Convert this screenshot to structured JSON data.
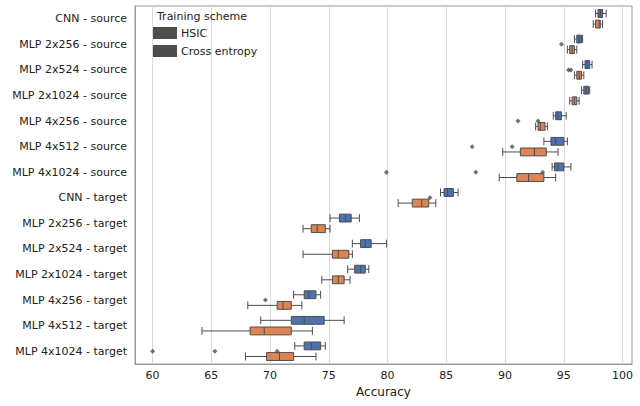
{
  "chart_data": {
    "type": "boxplot",
    "orientation": "horizontal",
    "xlabel": "Accuracy",
    "legend_title": "Training scheme",
    "legend": "upper left",
    "grid": true,
    "xlim": [
      58.5,
      100.8
    ],
    "xticks": [
      60,
      65,
      70,
      75,
      80,
      85,
      90,
      95,
      100
    ],
    "categories": [
      "CNN - source",
      "MLP 2x256 - source",
      "MLP 2x524 - source",
      "MLP 2x1024 - source",
      "MLP 4x256 - source",
      "MLP 4x512 - source",
      "MLP 4x1024 - source",
      "CNN - target",
      "MLP 2x256 - target",
      "MLP 2x524 - target",
      "MLP 2x1024 - target",
      "MLP 4x256 - target",
      "MLP 4x512 - target",
      "MLP 4x1024 - target"
    ],
    "series": [
      {
        "name": "HSIC",
        "color": "#4c72b0",
        "values": [
          [
            97.7,
            97.9,
            98.1,
            98.3,
            98.6
          ],
          [
            95.9,
            96.1,
            96.3,
            96.5,
            96.6
          ],
          [
            96.6,
            96.8,
            97.0,
            97.2,
            97.4
          ],
          [
            96.5,
            96.7,
            96.9,
            97.1,
            97.2
          ],
          [
            94.1,
            94.3,
            94.5,
            94.8,
            95.2
          ],
          [
            93.3,
            93.9,
            94.3,
            95.0,
            95.3
          ],
          [
            94.0,
            94.2,
            94.5,
            95.0,
            95.6
          ],
          [
            84.5,
            84.8,
            85.1,
            85.6,
            86.0
          ],
          [
            75.1,
            75.9,
            76.4,
            76.9,
            77.6
          ],
          [
            77.0,
            77.7,
            78.1,
            78.6,
            79.9
          ],
          [
            76.6,
            77.2,
            77.7,
            78.1,
            78.4
          ],
          [
            72.0,
            72.9,
            73.3,
            73.9,
            74.3
          ],
          [
            69.2,
            71.8,
            72.9,
            74.6,
            76.3
          ],
          [
            72.1,
            72.9,
            73.5,
            74.3,
            74.7
          ]
        ],
        "outliers": [
          [],
          [],
          [],
          [],
          [
            92.8
          ],
          [
            90.6
          ],
          [
            93.2
          ],
          [
            83.6
          ],
          [],
          [],
          [],
          [],
          [],
          [
            70.6
          ]
        ]
      },
      {
        "name": "Cross entropy",
        "color": "#dd8452",
        "values": [
          [
            97.5,
            97.7,
            98.0,
            98.1,
            98.3
          ],
          [
            95.3,
            95.5,
            95.7,
            95.9,
            96.1
          ],
          [
            95.9,
            96.1,
            96.3,
            96.5,
            96.7
          ],
          [
            95.5,
            95.7,
            95.9,
            96.1,
            96.3
          ],
          [
            92.6,
            92.8,
            93.0,
            93.4,
            93.6
          ],
          [
            89.8,
            91.3,
            92.5,
            93.5,
            94.5
          ],
          [
            89.5,
            91.0,
            92.0,
            93.3,
            94.3
          ],
          [
            80.9,
            82.1,
            82.9,
            83.5,
            84.1
          ],
          [
            72.8,
            73.5,
            74.0,
            74.7,
            75.1
          ],
          [
            72.8,
            75.3,
            75.8,
            76.7,
            77.0
          ],
          [
            74.4,
            75.3,
            75.8,
            76.3,
            76.8
          ],
          [
            68.1,
            70.6,
            71.1,
            71.8,
            72.7
          ],
          [
            64.2,
            68.3,
            69.5,
            71.8,
            73.6
          ],
          [
            67.9,
            69.7,
            70.8,
            72.0,
            73.9
          ]
        ],
        "outliers": [
          [],
          [
            94.8
          ],
          [
            95.4,
            95.6
          ],
          [],
          [
            91.1
          ],
          [
            87.2
          ],
          [
            87.5,
            79.9
          ],
          [],
          [],
          [],
          [],
          [
            69.6
          ],
          [],
          [
            60.0,
            65.3
          ]
        ]
      }
    ]
  }
}
